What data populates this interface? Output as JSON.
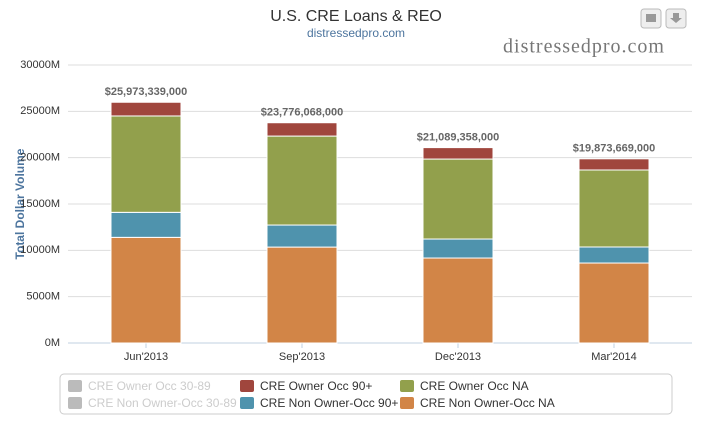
{
  "chart_data": {
    "type": "stacked_bar",
    "title": "U.S. CRE Loans & REO",
    "subtitle": "distressedpro.com",
    "watermark": "distressedpro.com",
    "y_label": "Total Dollar Volume",
    "categories": [
      "Jun'2013",
      "Sep'2013",
      "Dec'2013",
      "Mar'2014"
    ],
    "series": [
      {
        "name": "CRE Owner Occ 30-89",
        "color": "#bbbbbb",
        "visible": false,
        "values": [
          null,
          null,
          null,
          null
        ]
      },
      {
        "name": "CRE Owner Occ 90+",
        "color": "#a0463d",
        "visible": true,
        "values": [
          1480,
          1440,
          1235,
          1207
        ]
      },
      {
        "name": "CRE Owner Occ NA",
        "color": "#92a04c",
        "visible": true,
        "values": [
          10400,
          9600,
          8630,
          8310
        ]
      },
      {
        "name": "CRE Non Owner-Occ 30-89",
        "color": "#bbbbbb",
        "visible": false,
        "values": [
          null,
          null,
          null,
          null
        ]
      },
      {
        "name": "CRE Non Owner-Occ 90+",
        "color": "#4f93ad",
        "visible": true,
        "values": [
          2700,
          2380,
          2050,
          1730
        ]
      },
      {
        "name": "CRE Non Owner-Occ NA",
        "color": "#d28547",
        "visible": true,
        "values": [
          11400,
          10350,
          9170,
          8630
        ]
      }
    ],
    "totals": [
      25973.339,
      23776.068,
      21089.358,
      19873.669
    ],
    "total_labels": [
      "$25,973,339,000",
      "$23,776,068,000",
      "$21,089,358,000",
      "$19,873,669,000"
    ],
    "ylim": [
      0,
      30000
    ],
    "yticks": [
      {
        "value": 0,
        "label": "0M"
      },
      {
        "value": 5000,
        "label": "5000M"
      },
      {
        "value": 10000,
        "label": "10000M"
      },
      {
        "value": 15000,
        "label": "15000M"
      },
      {
        "value": 20000,
        "label": "20000M"
      },
      {
        "value": 25000,
        "label": "25000M"
      },
      {
        "value": 30000,
        "label": "30000M"
      }
    ],
    "grid": true
  }
}
